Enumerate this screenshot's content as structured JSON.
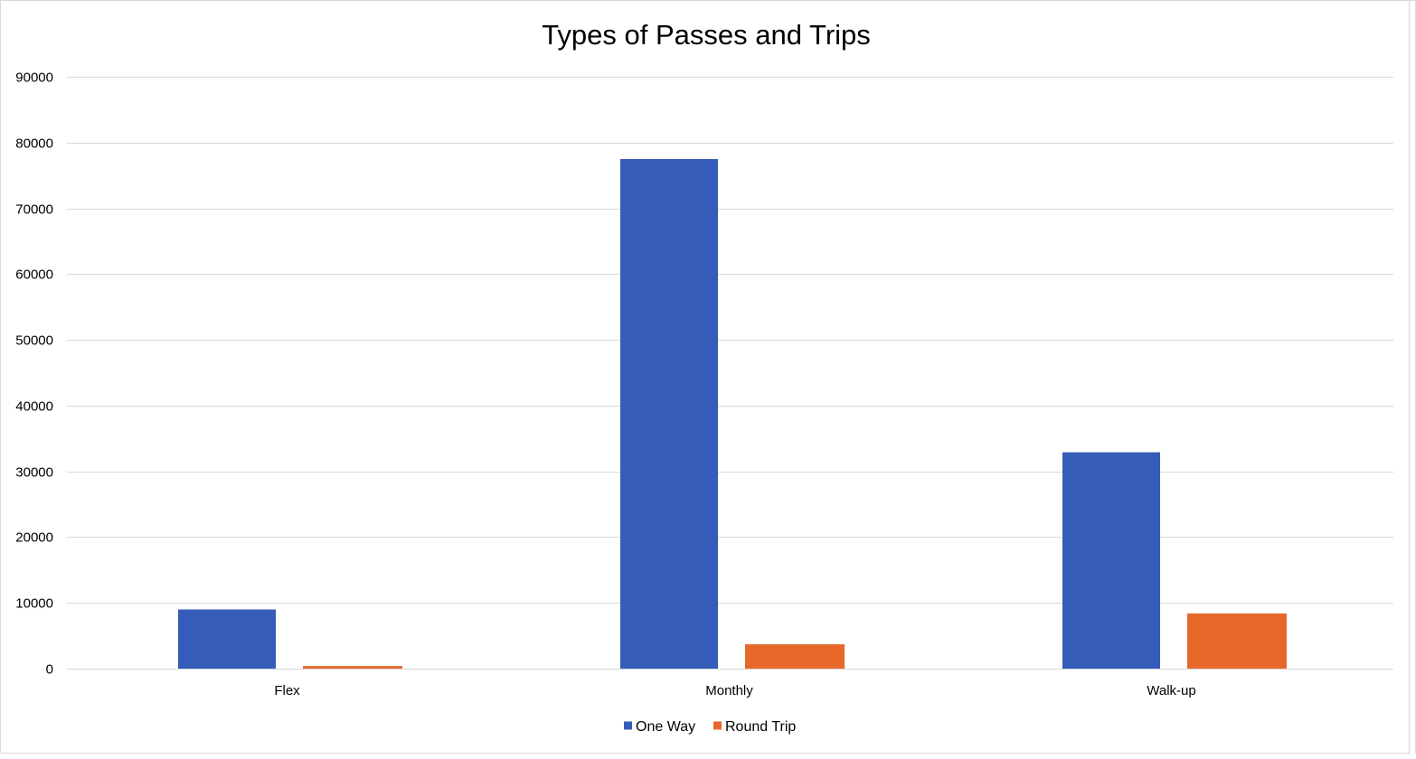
{
  "chart_data": {
    "type": "bar",
    "title": "Types of Passes and Trips",
    "xlabel": "",
    "ylabel": "",
    "categories": [
      "Flex",
      "Monthly",
      "Walk-up"
    ],
    "series": [
      {
        "name": "One Way",
        "color": "#355CB8",
        "values": [
          9000,
          77500,
          32900
        ]
      },
      {
        "name": "Round Trip",
        "color": "#E6692A",
        "values": [
          400,
          3700,
          8400
        ]
      }
    ],
    "ylim": [
      0,
      90000
    ],
    "yticks": [
      "0",
      "10000",
      "20000",
      "30000",
      "40000",
      "50000",
      "60000",
      "70000",
      "80000",
      "90000"
    ],
    "grid": true,
    "legend_position": "bottom-center",
    "gridline_color": "#d9d9d9"
  }
}
